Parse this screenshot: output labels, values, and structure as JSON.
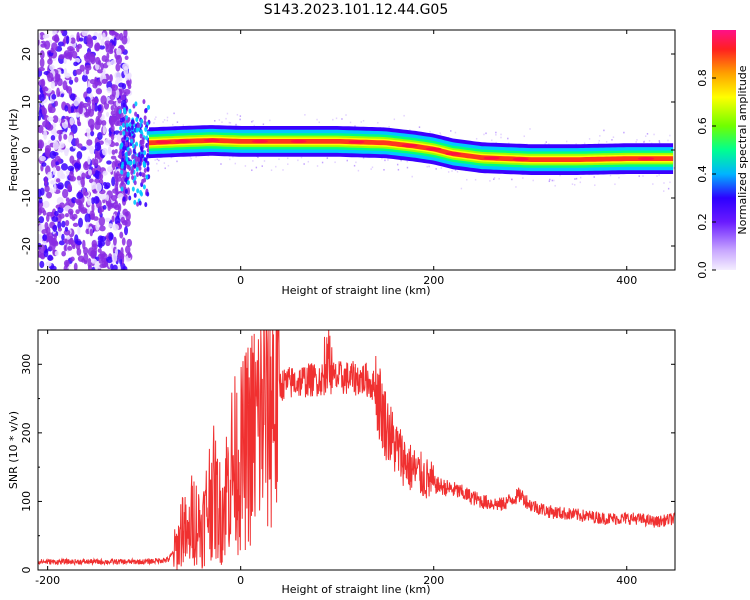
{
  "chart_data": [
    {
      "type": "heatmap",
      "title": "S143.2023.101.12.44.G05",
      "xlabel": "Height of straight line (km)",
      "ylabel": "Frequency (Hz)",
      "xlim": [
        -210,
        450
      ],
      "ylim": [
        -25,
        25
      ],
      "xticks": [
        -200,
        0,
        200,
        400
      ],
      "yticks": [
        -20,
        -10,
        0,
        10,
        20
      ],
      "colorbar": {
        "label": "Normalized spectral amplitude",
        "range": [
          0,
          1
        ],
        "ticks": [
          0.0,
          0.2,
          0.4,
          0.6,
          0.8
        ],
        "colors": [
          "#ece0ff",
          "#8a2be2",
          "#3a00ff",
          "#00c8ff",
          "#00ff80",
          "#9bff00",
          "#ffff00",
          "#ffa000",
          "#ff2020",
          "#ff1080"
        ]
      },
      "ridge": {
        "description_points_x": [
          -95,
          -60,
          -30,
          0,
          50,
          100,
          150,
          180,
          200,
          220,
          250,
          300,
          350,
          400,
          450
        ],
        "description_points_y": [
          1.5,
          1.8,
          2.0,
          1.8,
          1.8,
          1.8,
          1.5,
          0.8,
          0.2,
          -0.8,
          -1.6,
          -2.0,
          -2.0,
          -1.8,
          -1.8
        ]
      }
    },
    {
      "type": "line",
      "xlabel": "Height of straight line (km)",
      "ylabel": "SNR (10 * v/v)",
      "xlim": [
        -210,
        450
      ],
      "ylim": [
        0,
        350
      ],
      "xticks": [
        -200,
        0,
        200,
        400
      ],
      "yticks": [
        0,
        100,
        200,
        300
      ],
      "color": "#f03030",
      "series": [
        {
          "x": [
            -210,
            -150,
            -100,
            -75,
            -65,
            -60,
            -55,
            -50,
            -40,
            -30,
            -20,
            -10,
            0,
            10,
            20,
            30,
            40,
            60,
            90,
            110,
            130,
            140,
            150,
            160,
            175,
            200,
            225,
            250,
            270,
            290,
            300,
            320,
            350,
            380,
            410,
            430,
            450
          ],
          "values": [
            12,
            12,
            12,
            15,
            35,
            70,
            40,
            80,
            60,
            120,
            80,
            150,
            160,
            190,
            220,
            255,
            270,
            275,
            280,
            280,
            278,
            265,
            215,
            180,
            150,
            125,
            115,
            100,
            95,
            110,
            95,
            85,
            80,
            75,
            75,
            70,
            75
          ]
        }
      ]
    }
  ]
}
